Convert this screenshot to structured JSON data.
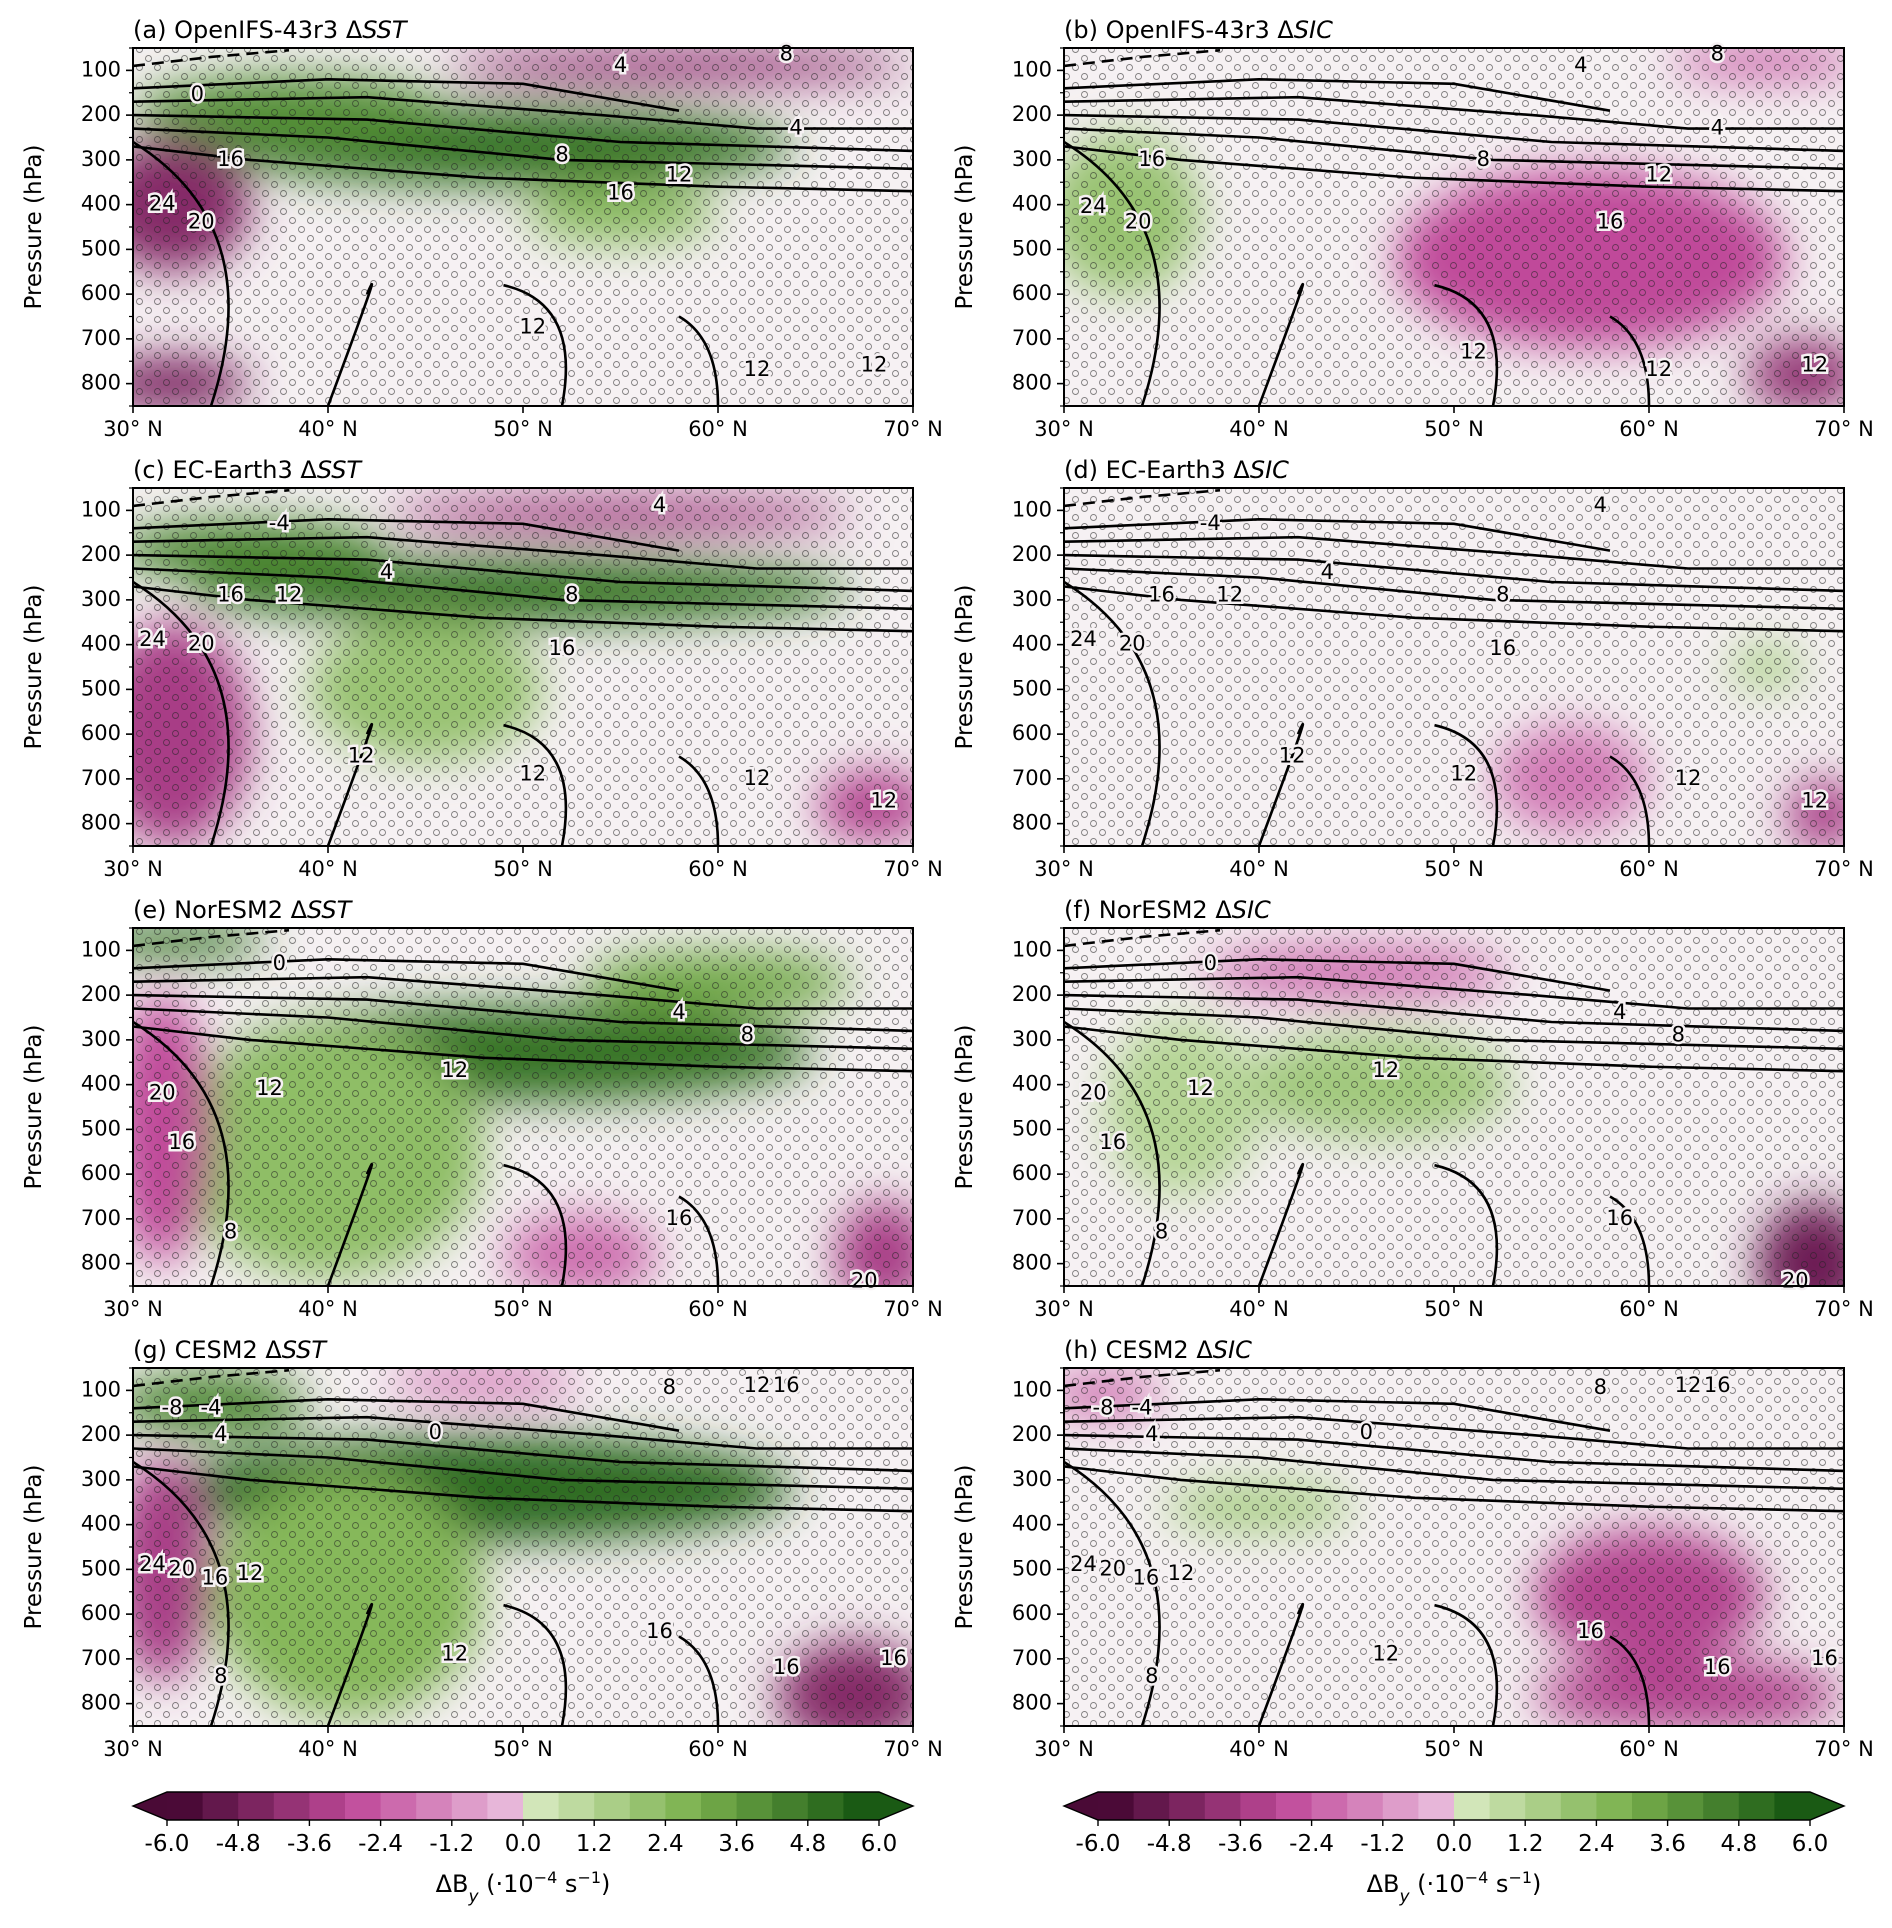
{
  "figure": {
    "ylabel": "Pressure (hPa)",
    "yticks": [
      100,
      200,
      300,
      400,
      500,
      600,
      700,
      800
    ],
    "xticks": [
      "30° N",
      "40° N",
      "50° N",
      "60° N",
      "70° N"
    ],
    "colors": {
      "neg_max": "#4a0a36",
      "neg_mid": "#c04a9a",
      "neg_light": "#ecc3e0",
      "neutral": "#f6f1f3",
      "pos_light": "#dcecc6",
      "pos_mid": "#7cb24e",
      "pos_max": "#1a5a14"
    }
  },
  "colorbar": {
    "ticks": [
      "-6.0",
      "-4.8",
      "-3.6",
      "-2.4",
      "-1.2",
      "0.0",
      "1.2",
      "2.4",
      "3.6",
      "4.8",
      "6.0"
    ],
    "label_prefix": "ΔB",
    "label_sub": "y",
    "label_suffix": " (·10",
    "label_exp": "−4",
    "label_unit": " s",
    "label_exp2": "−1",
    "label_close": ")"
  },
  "chart_data": [
    {
      "type": "contour",
      "panel": "a",
      "title_prefix": "(a) OpenIFS-43r3 Δ",
      "title_var": "SST",
      "x_range": [
        30,
        70
      ],
      "y_range": [
        850,
        50
      ],
      "fill": [
        {
          "kind": "pos",
          "cx": 49,
          "cy": 270,
          "rx": 15,
          "ry": 90,
          "level": 0.85
        },
        {
          "kind": "pos",
          "cx": 38,
          "cy": 190,
          "rx": 8,
          "ry": 80,
          "level": 0.7
        },
        {
          "kind": "neg",
          "cx": 58,
          "cy": 90,
          "rx": 12,
          "ry": 40,
          "level": 0.7
        },
        {
          "kind": "neg",
          "cx": 32,
          "cy": 400,
          "rx": 4,
          "ry": 150,
          "level": 0.75
        },
        {
          "kind": "neg",
          "cx": 32,
          "cy": 800,
          "rx": 4,
          "ry": 60,
          "level": 0.8
        },
        {
          "kind": "pos",
          "cx": 55,
          "cy": 420,
          "rx": 5,
          "ry": 70,
          "level": 0.4
        }
      ],
      "contour_labels": [
        {
          "text": "4",
          "x": 55,
          "y": 90
        },
        {
          "text": "8",
          "x": 63.5,
          "y": 65
        },
        {
          "text": "4",
          "x": 64,
          "y": 230
        },
        {
          "text": "8",
          "x": 52,
          "y": 290
        },
        {
          "text": "12",
          "x": 58,
          "y": 335
        },
        {
          "text": "16",
          "x": 55,
          "y": 375
        },
        {
          "text": "16",
          "x": 35,
          "y": 300
        },
        {
          "text": "24",
          "x": 31.5,
          "y": 400
        },
        {
          "text": "20",
          "x": 33.5,
          "y": 440
        },
        {
          "text": "0",
          "x": 33.3,
          "y": 155
        },
        {
          "text": "12",
          "x": 50.5,
          "y": 675
        },
        {
          "text": "12",
          "x": 62,
          "y": 770
        },
        {
          "text": "12",
          "x": 68,
          "y": 760
        }
      ]
    },
    {
      "type": "contour",
      "panel": "b",
      "title_prefix": "(b) OpenIFS-43r3 Δ",
      "title_var": "SIC",
      "x_range": [
        30,
        70
      ],
      "y_range": [
        850,
        50
      ],
      "fill": [
        {
          "kind": "neg",
          "cx": 57,
          "cy": 520,
          "rx": 10,
          "ry": 200,
          "level": 0.5
        },
        {
          "kind": "neg",
          "cx": 68,
          "cy": 780,
          "rx": 3,
          "ry": 80,
          "level": 0.7
        },
        {
          "kind": "pos",
          "cx": 33,
          "cy": 420,
          "rx": 4,
          "ry": 180,
          "level": 0.35
        },
        {
          "kind": "neg",
          "cx": 66,
          "cy": 80,
          "rx": 5,
          "ry": 40,
          "level": 0.4
        }
      ],
      "contour_labels": [
        {
          "text": "4",
          "x": 56.5,
          "y": 90
        },
        {
          "text": "8",
          "x": 63.5,
          "y": 65
        },
        {
          "text": "4",
          "x": 63.5,
          "y": 230
        },
        {
          "text": "8",
          "x": 51.5,
          "y": 300
        },
        {
          "text": "12",
          "x": 60.5,
          "y": 335
        },
        {
          "text": "16",
          "x": 58,
          "y": 440
        },
        {
          "text": "16",
          "x": 34.5,
          "y": 300
        },
        {
          "text": "24",
          "x": 31.5,
          "y": 405
        },
        {
          "text": "20",
          "x": 33.8,
          "y": 440
        },
        {
          "text": "12",
          "x": 51,
          "y": 730
        },
        {
          "text": "12",
          "x": 60.5,
          "y": 770
        },
        {
          "text": "12",
          "x": 68.5,
          "y": 760
        }
      ]
    },
    {
      "type": "contour",
      "panel": "c",
      "title_prefix": "(c) EC-Earth3 Δ",
      "title_var": "SST",
      "x_range": [
        30,
        70
      ],
      "y_range": [
        850,
        50
      ],
      "fill": [
        {
          "kind": "pos",
          "cx": 50,
          "cy": 280,
          "rx": 17,
          "ry": 75,
          "level": 0.85
        },
        {
          "kind": "pos",
          "cx": 36,
          "cy": 190,
          "rx": 7,
          "ry": 70,
          "level": 0.75
        },
        {
          "kind": "pos",
          "cx": 45,
          "cy": 500,
          "rx": 6,
          "ry": 160,
          "level": 0.35
        },
        {
          "kind": "neg",
          "cx": 55,
          "cy": 110,
          "rx": 12,
          "ry": 40,
          "level": 0.65
        },
        {
          "kind": "neg",
          "cx": 32,
          "cy": 600,
          "rx": 4,
          "ry": 250,
          "level": 0.6
        },
        {
          "kind": "neg",
          "cx": 68,
          "cy": 760,
          "rx": 3,
          "ry": 80,
          "level": 0.55
        }
      ],
      "contour_labels": [
        {
          "text": "4",
          "x": 57,
          "y": 90
        },
        {
          "text": "4",
          "x": 43,
          "y": 240
        },
        {
          "text": "12",
          "x": 38,
          "y": 290
        },
        {
          "text": "8",
          "x": 52.5,
          "y": 290
        },
        {
          "text": "16",
          "x": 35,
          "y": 290
        },
        {
          "text": "16",
          "x": 52,
          "y": 410
        },
        {
          "text": "24",
          "x": 31,
          "y": 390
        },
        {
          "text": "20",
          "x": 33.5,
          "y": 400
        },
        {
          "text": "-4",
          "x": 37.5,
          "y": 130
        },
        {
          "text": "12",
          "x": 41.7,
          "y": 650
        },
        {
          "text": "12",
          "x": 50.5,
          "y": 690
        },
        {
          "text": "12",
          "x": 62,
          "y": 700
        },
        {
          "text": "12",
          "x": 68.5,
          "y": 750
        }
      ]
    },
    {
      "type": "contour",
      "panel": "d",
      "title_prefix": "(d) EC-Earth3 Δ",
      "title_var": "SIC",
      "x_range": [
        30,
        70
      ],
      "y_range": [
        850,
        50
      ],
      "fill": [
        {
          "kind": "neg",
          "cx": 56,
          "cy": 700,
          "rx": 4,
          "ry": 120,
          "level": 0.3
        },
        {
          "kind": "neg",
          "cx": 69,
          "cy": 780,
          "rx": 2,
          "ry": 80,
          "level": 0.6
        },
        {
          "kind": "pos",
          "cx": 66,
          "cy": 450,
          "rx": 2,
          "ry": 50,
          "level": 0.25
        }
      ],
      "contour_labels": [
        {
          "text": "4",
          "x": 57.5,
          "y": 90
        },
        {
          "text": "4",
          "x": 43.5,
          "y": 240
        },
        {
          "text": "12",
          "x": 38.5,
          "y": 290
        },
        {
          "text": "8",
          "x": 52.5,
          "y": 290
        },
        {
          "text": "16",
          "x": 35,
          "y": 290
        },
        {
          "text": "16",
          "x": 52.5,
          "y": 410
        },
        {
          "text": "24",
          "x": 31,
          "y": 390
        },
        {
          "text": "20",
          "x": 33.5,
          "y": 400
        },
        {
          "text": "-4",
          "x": 37.5,
          "y": 130
        },
        {
          "text": "12",
          "x": 41.7,
          "y": 650
        },
        {
          "text": "12",
          "x": 50.5,
          "y": 690
        },
        {
          "text": "12",
          "x": 62,
          "y": 700
        },
        {
          "text": "12",
          "x": 68.5,
          "y": 750
        }
      ]
    },
    {
      "type": "contour",
      "panel": "e",
      "title_prefix": "(e) NorESM2 Δ",
      "title_var": "SST",
      "x_range": [
        30,
        70
      ],
      "y_range": [
        850,
        50
      ],
      "fill": [
        {
          "kind": "pos",
          "cx": 50,
          "cy": 330,
          "rx": 15,
          "ry": 110,
          "level": 0.85
        },
        {
          "kind": "pos",
          "cx": 40,
          "cy": 550,
          "rx": 8,
          "ry": 280,
          "level": 0.4
        },
        {
          "kind": "pos",
          "cx": 32,
          "cy": 80,
          "rx": 5,
          "ry": 40,
          "level": 0.85
        },
        {
          "kind": "pos",
          "cx": 60,
          "cy": 170,
          "rx": 7,
          "ry": 70,
          "level": 0.55
        },
        {
          "kind": "neg",
          "cx": 31.5,
          "cy": 500,
          "rx": 2.5,
          "ry": 300,
          "level": 0.5
        },
        {
          "kind": "neg",
          "cx": 53,
          "cy": 780,
          "rx": 4,
          "ry": 90,
          "level": 0.35
        },
        {
          "kind": "neg",
          "cx": 68.5,
          "cy": 780,
          "rx": 2.5,
          "ry": 120,
          "level": 0.6
        }
      ],
      "contour_labels": [
        {
          "text": "0",
          "x": 37.5,
          "y": 130
        },
        {
          "text": "4",
          "x": 58,
          "y": 240
        },
        {
          "text": "8",
          "x": 61.5,
          "y": 290
        },
        {
          "text": "12",
          "x": 46.5,
          "y": 370
        },
        {
          "text": "12",
          "x": 37,
          "y": 410
        },
        {
          "text": "20",
          "x": 31.5,
          "y": 420
        },
        {
          "text": "16",
          "x": 32.5,
          "y": 530
        },
        {
          "text": "8",
          "x": 35,
          "y": 730
        },
        {
          "text": "16",
          "x": 58,
          "y": 700
        },
        {
          "text": "20",
          "x": 67.5,
          "y": 840
        }
      ]
    },
    {
      "type": "contour",
      "panel": "f",
      "title_prefix": "(f) NorESM2 Δ",
      "title_var": "SIC",
      "x_range": [
        30,
        70
      ],
      "y_range": [
        850,
        50
      ],
      "fill": [
        {
          "kind": "pos",
          "cx": 46,
          "cy": 400,
          "rx": 7,
          "ry": 120,
          "level": 0.3
        },
        {
          "kind": "pos",
          "cx": 36,
          "cy": 450,
          "rx": 4,
          "ry": 200,
          "level": 0.2
        },
        {
          "kind": "neg",
          "cx": 45,
          "cy": 150,
          "rx": 8,
          "ry": 60,
          "level": 0.35
        },
        {
          "kind": "neg",
          "cx": 68.5,
          "cy": 800,
          "rx": 3,
          "ry": 140,
          "level": 0.85
        }
      ],
      "contour_labels": [
        {
          "text": "0",
          "x": 37.5,
          "y": 130
        },
        {
          "text": "4",
          "x": 58.5,
          "y": 240
        },
        {
          "text": "8",
          "x": 61.5,
          "y": 290
        },
        {
          "text": "12",
          "x": 46.5,
          "y": 370
        },
        {
          "text": "12",
          "x": 37,
          "y": 410
        },
        {
          "text": "20",
          "x": 31.5,
          "y": 420
        },
        {
          "text": "16",
          "x": 32.5,
          "y": 530
        },
        {
          "text": "8",
          "x": 35,
          "y": 730
        },
        {
          "text": "16",
          "x": 58.5,
          "y": 700
        },
        {
          "text": "20",
          "x": 67.5,
          "y": 840
        }
      ]
    },
    {
      "type": "contour",
      "panel": "g",
      "title_prefix": "(g) CESM2 Δ",
      "title_var": "SST",
      "x_range": [
        30,
        70
      ],
      "y_range": [
        850,
        50
      ],
      "fill": [
        {
          "kind": "pos",
          "cx": 48,
          "cy": 320,
          "rx": 16,
          "ry": 120,
          "level": 0.9
        },
        {
          "kind": "pos",
          "cx": 41,
          "cy": 560,
          "rx": 7,
          "ry": 270,
          "level": 0.45
        },
        {
          "kind": "pos",
          "cx": 34,
          "cy": 130,
          "rx": 5,
          "ry": 70,
          "level": 0.75
        },
        {
          "kind": "neg",
          "cx": 31.5,
          "cy": 500,
          "rx": 2.5,
          "ry": 250,
          "level": 0.6
        },
        {
          "kind": "neg",
          "cx": 67,
          "cy": 780,
          "rx": 4,
          "ry": 120,
          "level": 0.75
        },
        {
          "kind": "neg",
          "cx": 48,
          "cy": 80,
          "rx": 5,
          "ry": 40,
          "level": 0.3
        }
      ],
      "contour_labels": [
        {
          "text": "-8",
          "x": 32,
          "y": 140
        },
        {
          "text": "-4",
          "x": 34,
          "y": 140
        },
        {
          "text": "4",
          "x": 34.5,
          "y": 200
        },
        {
          "text": "0",
          "x": 45.5,
          "y": 195
        },
        {
          "text": "8",
          "x": 57.5,
          "y": 95
        },
        {
          "text": "12",
          "x": 62,
          "y": 90
        },
        {
          "text": "16",
          "x": 63.5,
          "y": 90
        },
        {
          "text": "24",
          "x": 31,
          "y": 490
        },
        {
          "text": "20",
          "x": 32.5,
          "y": 500
        },
        {
          "text": "16",
          "x": 34.2,
          "y": 520
        },
        {
          "text": "12",
          "x": 36,
          "y": 510
        },
        {
          "text": "8",
          "x": 34.5,
          "y": 740
        },
        {
          "text": "12",
          "x": 46.5,
          "y": 690
        },
        {
          "text": "16",
          "x": 57,
          "y": 640
        },
        {
          "text": "16",
          "x": 63.5,
          "y": 720
        },
        {
          "text": "16",
          "x": 69,
          "y": 700
        }
      ]
    },
    {
      "type": "contour",
      "panel": "h",
      "title_prefix": "(h) CESM2 Δ",
      "title_var": "SIC",
      "x_range": [
        30,
        70
      ],
      "y_range": [
        850,
        50
      ],
      "fill": [
        {
          "kind": "neg",
          "cx": 60,
          "cy": 560,
          "rx": 6,
          "ry": 150,
          "level": 0.55
        },
        {
          "kind": "neg",
          "cx": 62,
          "cy": 780,
          "rx": 8,
          "ry": 80,
          "level": 0.55
        },
        {
          "kind": "neg",
          "cx": 32,
          "cy": 110,
          "rx": 3,
          "ry": 50,
          "level": 0.35
        },
        {
          "kind": "pos",
          "cx": 40,
          "cy": 360,
          "rx": 5,
          "ry": 60,
          "level": 0.25
        }
      ],
      "contour_labels": [
        {
          "text": "-8",
          "x": 32,
          "y": 140
        },
        {
          "text": "-4",
          "x": 34,
          "y": 140
        },
        {
          "text": "4",
          "x": 34.5,
          "y": 200
        },
        {
          "text": "0",
          "x": 45.5,
          "y": 195
        },
        {
          "text": "8",
          "x": 57.5,
          "y": 95
        },
        {
          "text": "12",
          "x": 62,
          "y": 90
        },
        {
          "text": "16",
          "x": 63.5,
          "y": 90
        },
        {
          "text": "24",
          "x": 31,
          "y": 490
        },
        {
          "text": "20",
          "x": 32.5,
          "y": 500
        },
        {
          "text": "16",
          "x": 34.2,
          "y": 520
        },
        {
          "text": "12",
          "x": 36,
          "y": 510
        },
        {
          "text": "8",
          "x": 34.5,
          "y": 740
        },
        {
          "text": "12",
          "x": 46.5,
          "y": 690
        },
        {
          "text": "16",
          "x": 57,
          "y": 640
        },
        {
          "text": "16",
          "x": 63.5,
          "y": 720
        },
        {
          "text": "16",
          "x": 69,
          "y": 700
        }
      ]
    }
  ]
}
